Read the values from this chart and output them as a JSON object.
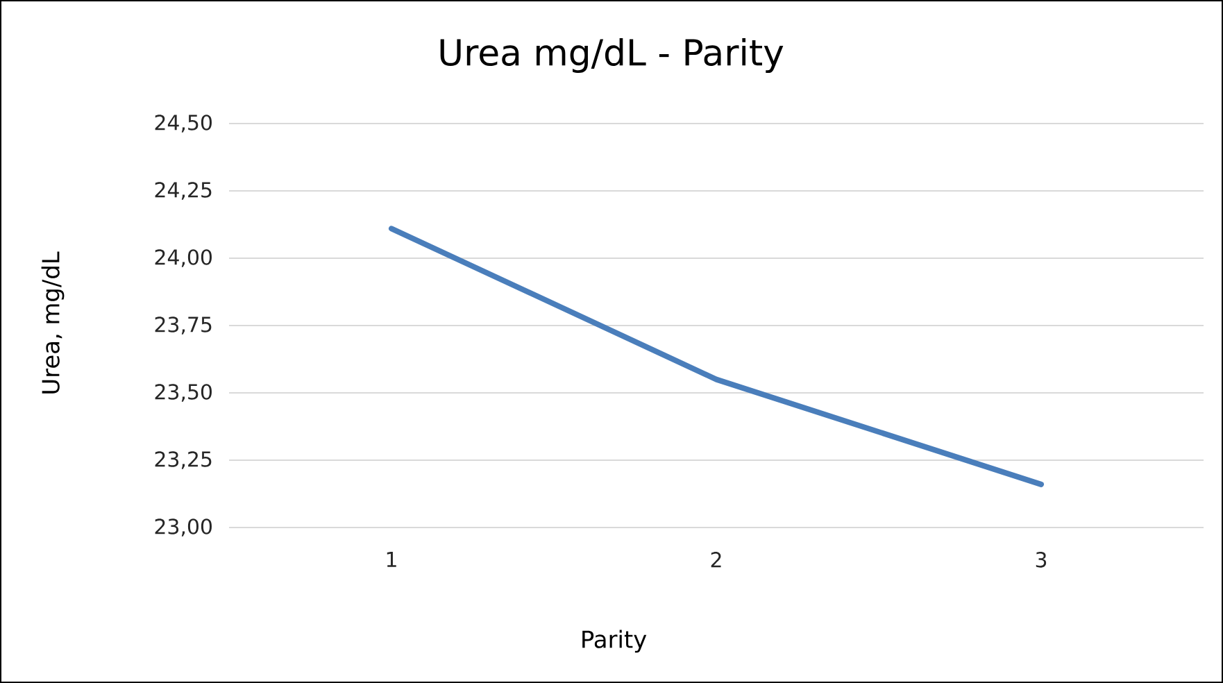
{
  "chart_data": {
    "type": "line",
    "title": "Urea mg/dL - Parity",
    "xlabel": "Parity",
    "ylabel": "Urea, mg/dL",
    "categories": [
      "1",
      "2",
      "3"
    ],
    "series": [
      {
        "color": "#4a7ebb",
        "values": [
          24.11,
          23.55,
          23.16
        ]
      }
    ],
    "ylim": [
      23.0,
      24.5
    ],
    "yticks": [
      {
        "value": 23.0,
        "label": "23,00"
      },
      {
        "value": 23.25,
        "label": "23,25"
      },
      {
        "value": 23.5,
        "label": "23,50"
      },
      {
        "value": 23.75,
        "label": "23,75"
      },
      {
        "value": 24.0,
        "label": "24,00"
      },
      {
        "value": 24.25,
        "label": "24,25"
      },
      {
        "value": 24.5,
        "label": "24,50"
      }
    ],
    "grid": "y",
    "legend": false,
    "marker": "none",
    "line_style": "solid"
  }
}
